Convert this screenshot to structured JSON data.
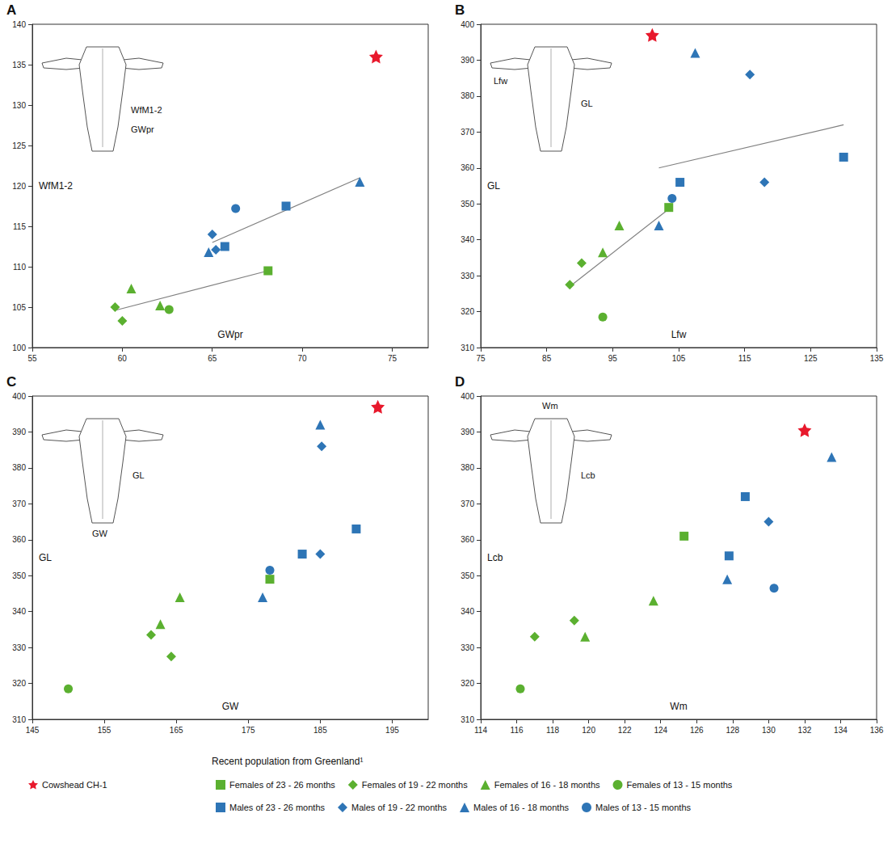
{
  "legend_title": "Recent population from Greenland¹",
  "chart_data": [
    {
      "type": "scatter",
      "title": "A",
      "x_label": "GWpr",
      "y_label": "WfM1-2",
      "diagram_labels": [
        "WfM1-2",
        "GWpr"
      ],
      "xlim": [
        55,
        77
      ],
      "xticks": [
        55,
        60,
        65,
        70,
        75
      ],
      "ylim": [
        100,
        140
      ],
      "yticks": [
        100,
        105,
        110,
        115,
        120,
        125,
        130,
        135,
        140
      ],
      "grid": false,
      "legend": "bottom",
      "series": [
        {
          "name": "Cowshead CH-1",
          "color": "#e8192c",
          "marker": "star",
          "x": [
            74.1
          ],
          "values": [
            136
          ]
        },
        {
          "name": "Females of 23 - 26 months",
          "color": "#5bb030",
          "marker": "square",
          "x": [
            68.1
          ],
          "values": [
            109.5
          ]
        },
        {
          "name": "Females of 19 - 22 months",
          "color": "#5bb030",
          "marker": "diamond",
          "x": [
            59.6,
            60.0
          ],
          "values": [
            105.0,
            103.3
          ]
        },
        {
          "name": "Females of 16 - 18 months",
          "color": "#5bb030",
          "marker": "triangle",
          "x": [
            60.5,
            62.1
          ],
          "values": [
            107.3,
            105.2
          ]
        },
        {
          "name": "Females of 13 - 15 months",
          "color": "#5bb030",
          "marker": "circle",
          "x": [
            62.6
          ],
          "values": [
            104.7
          ]
        },
        {
          "name": "Males of 23 - 26 months",
          "color": "#2e75b6",
          "marker": "square",
          "x": [
            65.7,
            69.1
          ],
          "values": [
            112.5,
            117.5
          ]
        },
        {
          "name": "Males of 19 - 22 months",
          "color": "#2e75b6",
          "marker": "diamond",
          "x": [
            65.0,
            65.2
          ],
          "values": [
            114.0,
            112.1
          ]
        },
        {
          "name": "Males of 16 - 18 months",
          "color": "#2e75b6",
          "marker": "triangle",
          "x": [
            64.8,
            73.2
          ],
          "values": [
            111.8,
            120.5
          ]
        },
        {
          "name": "Males of 13 - 15 months",
          "color": "#2e75b6",
          "marker": "circle",
          "x": [
            66.3
          ],
          "values": [
            117.2
          ]
        },
        {
          "type": "line",
          "color": "#808080",
          "marker": "none",
          "line_style": "solid",
          "x": [
            65.0,
            73.2
          ],
          "values": [
            113.0,
            121.0
          ]
        },
        {
          "type": "line",
          "color": "#808080",
          "marker": "none",
          "line_style": "solid",
          "x": [
            59.6,
            68.1
          ],
          "values": [
            104.6,
            109.5
          ]
        }
      ]
    },
    {
      "type": "scatter",
      "title": "B",
      "x_label": "Lfw",
      "y_label": "GL",
      "diagram_labels": [
        "Lfw",
        "GL"
      ],
      "xlim": [
        75,
        135
      ],
      "xticks": [
        75,
        85,
        95,
        105,
        115,
        125,
        135
      ],
      "ylim": [
        310,
        400
      ],
      "yticks": [
        310,
        320,
        330,
        340,
        350,
        360,
        370,
        380,
        390,
        400
      ],
      "grid": false,
      "legend": "bottom",
      "series": [
        {
          "name": "Cowshead CH-1",
          "color": "#e8192c",
          "marker": "star",
          "x": [
            101
          ],
          "values": [
            397
          ]
        },
        {
          "name": "Females of 23 - 26 months",
          "color": "#5bb030",
          "marker": "square",
          "x": [
            103.5
          ],
          "values": [
            349
          ]
        },
        {
          "name": "Females of 19 - 22 months",
          "color": "#5bb030",
          "marker": "diamond",
          "x": [
            88.5,
            90.3
          ],
          "values": [
            327.5,
            333.5
          ]
        },
        {
          "name": "Females of 16 - 18 months",
          "color": "#5bb030",
          "marker": "triangle",
          "x": [
            93.5,
            96.0
          ],
          "values": [
            336.5,
            344
          ]
        },
        {
          "name": "Females of 13 - 15 months",
          "color": "#5bb030",
          "marker": "circle",
          "x": [
            93.5
          ],
          "values": [
            318.5
          ]
        },
        {
          "name": "Males of 23 - 26 months",
          "color": "#2e75b6",
          "marker": "square",
          "x": [
            105.2,
            130.0
          ],
          "values": [
            356,
            363
          ]
        },
        {
          "name": "Males of 19 - 22 months",
          "color": "#2e75b6",
          "marker": "diamond",
          "x": [
            115.8,
            118.0
          ],
          "values": [
            386,
            356
          ]
        },
        {
          "name": "Males of 16 - 18 months",
          "color": "#2e75b6",
          "marker": "triangle",
          "x": [
            107.5,
            102.0
          ],
          "values": [
            392,
            344
          ]
        },
        {
          "name": "Males of 13 - 15 months",
          "color": "#2e75b6",
          "marker": "circle",
          "x": [
            104.0
          ],
          "values": [
            351.5
          ]
        },
        {
          "type": "line",
          "color": "#808080",
          "marker": "none",
          "line_style": "solid",
          "x": [
            102.0,
            130.0
          ],
          "values": [
            360,
            372
          ]
        },
        {
          "type": "line",
          "color": "#808080",
          "marker": "none",
          "line_style": "solid",
          "x": [
            88.5,
            103.8
          ],
          "values": [
            327,
            349
          ]
        }
      ]
    },
    {
      "type": "scatter",
      "title": "C",
      "x_label": "GW",
      "y_label": "GL",
      "diagram_labels": [
        "GL",
        "GW"
      ],
      "xlim": [
        145,
        200
      ],
      "xticks": [
        145,
        155,
        165,
        175,
        185,
        195
      ],
      "ylim": [
        310,
        400
      ],
      "yticks": [
        310,
        320,
        330,
        340,
        350,
        360,
        370,
        380,
        390,
        400
      ],
      "grid": false,
      "legend": "bottom",
      "series": [
        {
          "name": "Cowshead CH-1",
          "color": "#e8192c",
          "marker": "star",
          "x": [
            193
          ],
          "values": [
            397
          ]
        },
        {
          "name": "Females of 23 - 26 months",
          "color": "#5bb030",
          "marker": "square",
          "x": [
            178.0
          ],
          "values": [
            349
          ]
        },
        {
          "name": "Females of 19 - 22 months",
          "color": "#5bb030",
          "marker": "diamond",
          "x": [
            161.5,
            164.3
          ],
          "values": [
            333.5,
            327.5
          ]
        },
        {
          "name": "Females of 16 - 18 months",
          "color": "#5bb030",
          "marker": "triangle",
          "x": [
            162.8,
            165.5
          ],
          "values": [
            336.5,
            344
          ]
        },
        {
          "name": "Females of 13 - 15 months",
          "color": "#5bb030",
          "marker": "circle",
          "x": [
            150.0
          ],
          "values": [
            318.5
          ]
        },
        {
          "name": "Males of 23 - 26 months",
          "color": "#2e75b6",
          "marker": "square",
          "x": [
            182.5,
            190.0
          ],
          "values": [
            356,
            363
          ]
        },
        {
          "name": "Males of 19 - 22 months",
          "color": "#2e75b6",
          "marker": "diamond",
          "x": [
            185.0,
            185.2
          ],
          "values": [
            356,
            386
          ]
        },
        {
          "name": "Males of 16 - 18 months",
          "color": "#2e75b6",
          "marker": "triangle",
          "x": [
            177.0,
            185.0
          ],
          "values": [
            344,
            392
          ]
        },
        {
          "name": "Males of 13 - 15 months",
          "color": "#2e75b6",
          "marker": "circle",
          "x": [
            178.0
          ],
          "values": [
            351.5
          ]
        }
      ]
    },
    {
      "type": "scatter",
      "title": "D",
      "x_label": "Wm",
      "y_label": "Lcb",
      "diagram_labels": [
        "Wm",
        "Lcb"
      ],
      "xlim": [
        114,
        136
      ],
      "xticks": [
        114,
        116,
        118,
        120,
        122,
        124,
        126,
        128,
        130,
        132,
        134,
        136
      ],
      "ylim": [
        310,
        400
      ],
      "yticks": [
        310,
        320,
        330,
        340,
        350,
        360,
        370,
        380,
        390,
        400
      ],
      "grid": false,
      "legend": "bottom",
      "series": [
        {
          "name": "Cowshead CH-1",
          "color": "#e8192c",
          "marker": "star",
          "x": [
            132.0
          ],
          "values": [
            390.5
          ]
        },
        {
          "name": "Females of 23 - 26 months",
          "color": "#5bb030",
          "marker": "square",
          "x": [
            125.3
          ],
          "values": [
            361
          ]
        },
        {
          "name": "Females of 19 - 22 months",
          "color": "#5bb030",
          "marker": "diamond",
          "x": [
            117.0,
            119.2
          ],
          "values": [
            333,
            337.5
          ]
        },
        {
          "name": "Females of 16 - 18 months",
          "color": "#5bb030",
          "marker": "triangle",
          "x": [
            119.8,
            123.6
          ],
          "values": [
            333,
            343
          ]
        },
        {
          "name": "Females of 13 - 15 months",
          "color": "#5bb030",
          "marker": "circle",
          "x": [
            116.2
          ],
          "values": [
            318.5
          ]
        },
        {
          "name": "Males of 23 - 26 months",
          "color": "#2e75b6",
          "marker": "square",
          "x": [
            128.7,
            127.8
          ],
          "values": [
            372,
            355.5
          ]
        },
        {
          "name": "Males of 19 - 22 months",
          "color": "#2e75b6",
          "marker": "diamond",
          "x": [
            130.0
          ],
          "values": [
            365
          ]
        },
        {
          "name": "Males of 16 - 18 months",
          "color": "#2e75b6",
          "marker": "triangle",
          "x": [
            127.7,
            133.5
          ],
          "values": [
            349,
            383
          ]
        },
        {
          "name": "Males of 13 - 15 months",
          "color": "#2e75b6",
          "marker": "circle",
          "x": [
            130.3
          ],
          "values": [
            346.5
          ]
        }
      ]
    }
  ]
}
